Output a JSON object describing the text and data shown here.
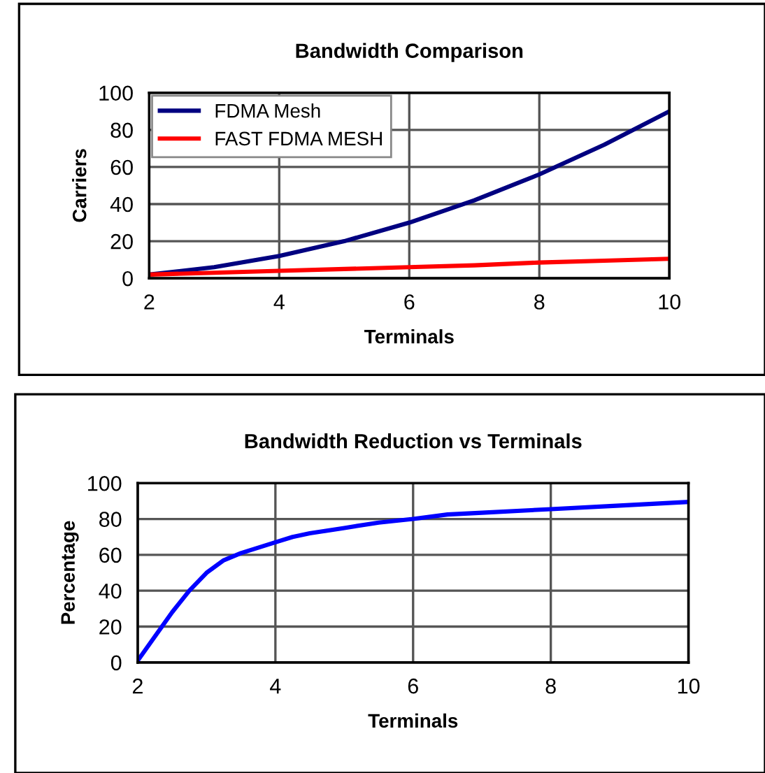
{
  "chart_data": [
    {
      "type": "line",
      "title": "Bandwidth Comparison",
      "xlabel": "Terminals",
      "ylabel": "Carriers",
      "xlim": [
        2,
        10
      ],
      "xticks": [
        2,
        4,
        6,
        8,
        10
      ],
      "ylim": [
        0,
        100
      ],
      "yticks": [
        0,
        20,
        40,
        60,
        80,
        100
      ],
      "grid": true,
      "legend": "top left",
      "marker": "none",
      "line_style": "solid",
      "series": [
        {
          "name": "FDMA Mesh",
          "color": "#000080",
          "x": [
            2,
            3,
            4,
            5,
            6,
            7,
            8,
            9,
            10
          ],
          "values": [
            2,
            6,
            12,
            20,
            30,
            42,
            56,
            72,
            90
          ]
        },
        {
          "name": "FAST FDMA MESH",
          "color": "#ff0000",
          "x": [
            2,
            3,
            4,
            5,
            6,
            7,
            8,
            9,
            10
          ],
          "values": [
            2,
            3,
            4,
            5,
            6,
            7,
            8.5,
            9.5,
            10.5
          ]
        }
      ]
    },
    {
      "type": "line",
      "title": "Bandwidth Reduction vs Terminals",
      "xlabel": "Terminals",
      "ylabel": "Percentage",
      "xlim": [
        2,
        10
      ],
      "xticks": [
        2,
        4,
        6,
        8,
        10
      ],
      "ylim": [
        0,
        100
      ],
      "yticks": [
        0,
        20,
        40,
        60,
        80,
        100
      ],
      "grid": true,
      "marker": "none",
      "line_style": "solid",
      "series": [
        {
          "color": "#0000ff",
          "x": [
            2,
            2.5,
            2.75,
            3,
            3.25,
            3.5,
            4,
            4.25,
            4.5,
            5,
            5.5,
            6,
            6.5,
            7,
            8,
            9,
            10
          ],
          "values": [
            1,
            28,
            40,
            50,
            57,
            61,
            67,
            70,
            72,
            75,
            78,
            80,
            82.5,
            83.5,
            85.5,
            87.5,
            89.5
          ]
        }
      ]
    }
  ]
}
